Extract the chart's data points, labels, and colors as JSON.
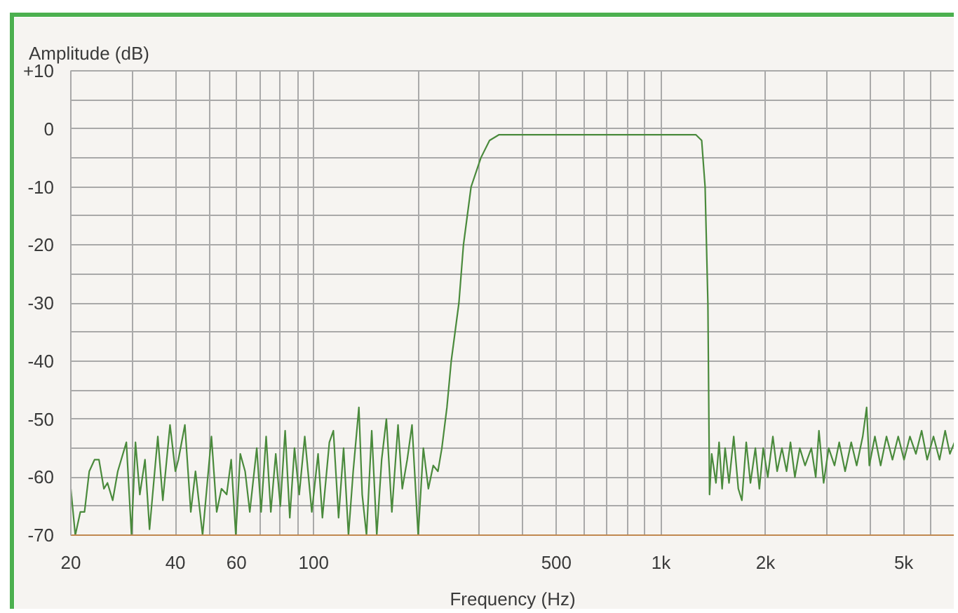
{
  "chart_data": {
    "type": "line",
    "ylabel": "Amplitude (dB)",
    "xlabel": "Frequency (Hz)",
    "log": "x",
    "grid": true,
    "xlim": [
      20,
      7000
    ],
    "ylim": [
      -70,
      10
    ],
    "xticks": [
      20,
      {
        "value": 30,
        "label": null
      },
      40,
      {
        "value": 50,
        "label": null
      },
      60,
      {
        "value": 70,
        "label": null
      },
      {
        "value": 80,
        "label": null
      },
      {
        "value": 90,
        "label": null
      },
      100,
      {
        "value": 200,
        "label": null
      },
      {
        "value": 300,
        "label": null
      },
      {
        "value": 400,
        "label": null
      },
      500,
      {
        "value": 600,
        "label": null
      },
      {
        "value": 700,
        "label": null
      },
      {
        "value": 800,
        "label": null
      },
      {
        "value": 900,
        "label": null
      },
      {
        "value": 1000,
        "label": "1k"
      },
      {
        "value": 2000,
        "label": "2k"
      },
      {
        "value": 3000,
        "label": null
      },
      {
        "value": 4000,
        "label": null
      },
      {
        "value": 5000,
        "label": "5k"
      },
      {
        "value": 6000,
        "label": null
      }
    ],
    "yticks": [
      {
        "value": 10,
        "label": "+10"
      },
      {
        "value": 5,
        "label": null
      },
      0,
      {
        "value": -5,
        "label": null
      },
      -10,
      {
        "value": -15,
        "label": null
      },
      -20,
      {
        "value": -25,
        "label": null
      },
      -30,
      {
        "value": -35,
        "label": null
      },
      -40,
      {
        "value": -45,
        "label": null
      },
      -50,
      {
        "value": -55,
        "label": null
      },
      -60,
      {
        "value": -65,
        "label": null
      },
      -70
    ],
    "x": [
      20,
      20.6,
      21.3,
      21.9,
      22.6,
      23.4,
      24.1,
      24.9,
      25.5,
      26.4,
      27.3,
      28.9,
      29.9,
      30.7,
      31.6,
      32.7,
      33.7,
      35.6,
      36.8,
      38.6,
      40,
      40.8,
      42.6,
      44.3,
      45.7,
      47.9,
      50.8,
      52.6,
      54.3,
      56.2,
      57.9,
      59.7,
      61.5,
      63.5,
      65.5,
      68.6,
      70.6,
      73,
      75.3,
      77.8,
      80.2,
      82.8,
      85.4,
      88.1,
      90.9,
      94.3,
      98.8,
      103,
      106,
      111,
      114,
      118,
      122,
      126,
      130,
      135,
      138,
      142,
      147,
      152,
      157,
      162,
      168,
      175,
      180,
      186,
      192,
      200,
      207,
      214,
      221,
      228,
      234,
      242,
      249,
      262,
      270,
      284,
      303,
      321,
      342,
      500,
      800,
      1000,
      1260,
      1310,
      1340,
      1365,
      1380,
      1400,
      1440,
      1470,
      1500,
      1530,
      1570,
      1620,
      1670,
      1710,
      1760,
      1810,
      1870,
      1920,
      1970,
      2030,
      2100,
      2160,
      2230,
      2300,
      2360,
      2430,
      2510,
      2600,
      2710,
      2790,
      2850,
      2940,
      3040,
      3160,
      3260,
      3390,
      3530,
      3660,
      3810,
      3910,
      3980,
      4130,
      4290,
      4460,
      4640,
      4820,
      5010,
      5210,
      5420,
      5630,
      5840,
      6090,
      6340,
      6580,
      6790,
      7000
    ],
    "series": [
      {
        "color": "#4a8a3c",
        "values": [
          -62,
          -70,
          -66,
          -66,
          -59,
          -57,
          -57,
          -62,
          -61,
          -64,
          -59,
          -54,
          -70,
          -54,
          -63,
          -57,
          -69,
          -53,
          -64,
          -51,
          -59,
          -57,
          -51,
          -66,
          -59,
          -70,
          -53,
          -66,
          -62,
          -63,
          -57,
          -70,
          -56,
          -59,
          -66,
          -55,
          -66,
          -53,
          -66,
          -56,
          -65,
          -52,
          -67,
          -55,
          -63,
          -53,
          -66,
          -56,
          -67,
          -54,
          -52,
          -67,
          -55,
          -70,
          -59,
          -48,
          -63,
          -70,
          -52,
          -70,
          -57,
          -50,
          -66,
          -51,
          -62,
          -57,
          -51,
          -70,
          -55,
          -62,
          -58,
          -59,
          -55,
          -48,
          -40,
          -30,
          -20,
          -10,
          -5,
          -2,
          -1,
          -1,
          -1,
          -1,
          -1,
          -2,
          -10,
          -30,
          -63,
          -56,
          -61,
          -54,
          -62,
          -55,
          -61,
          -53,
          -62,
          -64,
          -54,
          -61,
          -55,
          -62,
          -55,
          -60,
          -53,
          -59,
          -55,
          -59,
          -54,
          -60,
          -55,
          -58,
          -55,
          -60,
          -52,
          -61,
          -55,
          -58,
          -54,
          -59,
          -54,
          -58,
          -53,
          -48,
          -58,
          -53,
          -58,
          -53,
          -57,
          -53,
          -57,
          -53,
          -56,
          -52,
          -57,
          -53,
          -57,
          -52,
          -56,
          -54
        ]
      }
    ]
  }
}
